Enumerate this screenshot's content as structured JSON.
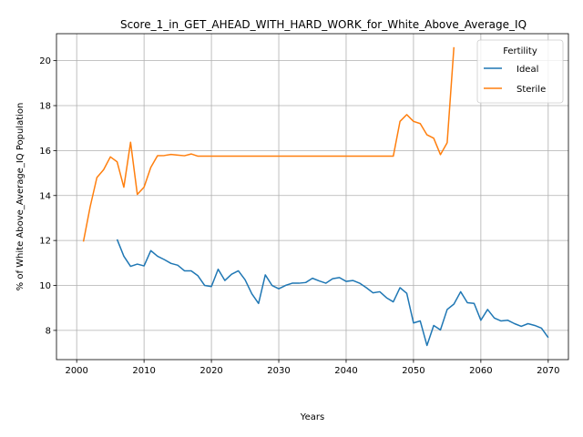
{
  "chart_data": {
    "type": "line",
    "title": "Score_1_in_GET_AHEAD_WITH_HARD_WORK_for_White_Above_Average_IQ",
    "xlabel": "Years",
    "ylabel": "% of White Above_Average_IQ Population",
    "xlim": [
      1997,
      2073
    ],
    "ylim": [
      6.7,
      21.2
    ],
    "xticks": [
      2000,
      2010,
      2020,
      2030,
      2040,
      2050,
      2060,
      2070
    ],
    "yticks": [
      8,
      10,
      12,
      14,
      16,
      18,
      20
    ],
    "grid": true,
    "legend": {
      "title": "Fertility",
      "placement": "top-right"
    },
    "series": [
      {
        "name": "Ideal",
        "color": "#1f77b4",
        "x": [
          2006,
          2007,
          2008,
          2009,
          2010,
          2011,
          2012,
          2013,
          2014,
          2015,
          2016,
          2017,
          2018,
          2019,
          2020,
          2021,
          2022,
          2023,
          2024,
          2025,
          2026,
          2027,
          2028,
          2029,
          2030,
          2031,
          2032,
          2033,
          2034,
          2035,
          2036,
          2037,
          2038,
          2039,
          2040,
          2041,
          2042,
          2043,
          2044,
          2045,
          2046,
          2047,
          2048,
          2049,
          2050,
          2051,
          2052,
          2053,
          2054,
          2055,
          2056,
          2057,
          2058,
          2059,
          2060,
          2061,
          2062,
          2063,
          2064,
          2065,
          2066,
          2067,
          2068,
          2069,
          2070
        ],
        "y": [
          12.05,
          11.3,
          10.85,
          10.95,
          10.87,
          11.55,
          11.3,
          11.15,
          10.98,
          10.9,
          10.65,
          10.65,
          10.43,
          10.0,
          9.95,
          10.72,
          10.22,
          10.5,
          10.65,
          10.25,
          9.63,
          9.2,
          10.47,
          10.0,
          9.85,
          10.0,
          10.1,
          10.1,
          10.13,
          10.32,
          10.2,
          10.1,
          10.3,
          10.35,
          10.18,
          10.22,
          10.1,
          9.9,
          9.67,
          9.72,
          9.45,
          9.27,
          9.9,
          9.65,
          8.33,
          8.42,
          7.33,
          8.22,
          8.02,
          8.93,
          9.17,
          9.72,
          9.23,
          9.2,
          8.45,
          8.93,
          8.55,
          8.42,
          8.45,
          8.3,
          8.18,
          8.3,
          8.22,
          8.1,
          7.68
        ]
      },
      {
        "name": "Sterile",
        "color": "#ff7f0e",
        "x": [
          2001,
          2002,
          2003,
          2004,
          2005,
          2006,
          2007,
          2008,
          2009,
          2010,
          2011,
          2012,
          2013,
          2014,
          2015,
          2016,
          2017,
          2018,
          2019,
          2020,
          2025,
          2030,
          2035,
          2040,
          2045,
          2047,
          2048,
          2049,
          2050,
          2051,
          2052,
          2053,
          2054,
          2055,
          2056
        ],
        "y": [
          11.95,
          13.5,
          14.8,
          15.15,
          15.72,
          15.5,
          14.37,
          16.37,
          14.05,
          14.37,
          15.25,
          15.77,
          15.78,
          15.83,
          15.8,
          15.77,
          15.85,
          15.75,
          15.75,
          15.75,
          15.75,
          15.75,
          15.75,
          15.75,
          15.75,
          15.75,
          17.3,
          17.6,
          17.3,
          17.2,
          16.7,
          16.55,
          15.82,
          16.35,
          20.6
        ]
      }
    ]
  }
}
